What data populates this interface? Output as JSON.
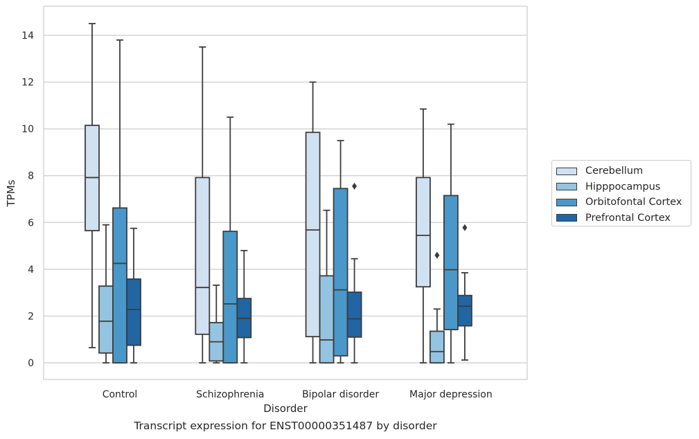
{
  "chart_data": {
    "type": "box",
    "caption": "Transcript expression for ENST00000351487 by disorder",
    "xlabel": "Disorder",
    "ylabel": "TPMs",
    "ylim": [
      -0.7,
      15.2
    ],
    "yticks": [
      0,
      2,
      4,
      6,
      8,
      10,
      12,
      14
    ],
    "grid": true,
    "legend_position": "right",
    "categories": [
      "Control",
      "Schizophrenia",
      "Bipolar disorder",
      "Major depression"
    ],
    "series": [
      {
        "name": "Cerebellum",
        "color": "#d0e1f2",
        "boxes": [
          {
            "whislo": 0.65,
            "q1": 5.65,
            "med": 7.92,
            "q3": 10.15,
            "whishi": 14.5,
            "fliers": []
          },
          {
            "whislo": 0.0,
            "q1": 1.22,
            "med": 3.22,
            "q3": 7.92,
            "whishi": 13.5,
            "fliers": []
          },
          {
            "whislo": 0.0,
            "q1": 1.12,
            "med": 5.68,
            "q3": 9.85,
            "whishi": 12.0,
            "fliers": []
          },
          {
            "whislo": 0.0,
            "q1": 3.25,
            "med": 5.45,
            "q3": 7.92,
            "whishi": 10.85,
            "fliers": []
          }
        ]
      },
      {
        "name": "Hipppocampus",
        "color": "#94c4df",
        "boxes": [
          {
            "whislo": 0.0,
            "q1": 0.42,
            "med": 1.78,
            "q3": 3.28,
            "whishi": 5.9,
            "fliers": []
          },
          {
            "whislo": 0.0,
            "q1": 0.08,
            "med": 0.9,
            "q3": 1.72,
            "whishi": 3.32,
            "fliers": []
          },
          {
            "whislo": 0.0,
            "q1": 0.0,
            "med": 0.98,
            "q3": 3.72,
            "whishi": 6.52,
            "fliers": []
          },
          {
            "whislo": 0.0,
            "q1": 0.0,
            "med": 0.48,
            "q3": 1.35,
            "whishi": 2.3,
            "fliers": [
              4.6
            ]
          }
        ]
      },
      {
        "name": "Orbitofontal Cortex",
        "color": "#4a98c9",
        "boxes": [
          {
            "whislo": 0.0,
            "q1": 0.0,
            "med": 4.25,
            "q3": 6.62,
            "whishi": 13.8,
            "fliers": []
          },
          {
            "whislo": 0.0,
            "q1": 0.0,
            "med": 2.52,
            "q3": 5.62,
            "whishi": 10.5,
            "fliers": []
          },
          {
            "whislo": 0.0,
            "q1": 0.3,
            "med": 3.12,
            "q3": 7.45,
            "whishi": 9.5,
            "fliers": []
          },
          {
            "whislo": 0.0,
            "q1": 1.42,
            "med": 3.98,
            "q3": 7.15,
            "whishi": 10.2,
            "fliers": []
          }
        ]
      },
      {
        "name": "Prefrontal Cortex",
        "color": "#2265a3",
        "boxes": [
          {
            "whislo": 0.0,
            "q1": 0.75,
            "med": 2.28,
            "q3": 3.58,
            "whishi": 5.75,
            "fliers": []
          },
          {
            "whislo": 0.0,
            "q1": 1.08,
            "med": 1.9,
            "q3": 2.75,
            "whishi": 4.8,
            "fliers": []
          },
          {
            "whislo": 0.0,
            "q1": 1.1,
            "med": 1.88,
            "q3": 3.02,
            "whishi": 4.45,
            "fliers": [
              7.55
            ]
          },
          {
            "whislo": 0.12,
            "q1": 1.58,
            "med": 2.42,
            "q3": 2.88,
            "whishi": 3.85,
            "fliers": [
              5.78
            ]
          }
        ]
      }
    ]
  }
}
